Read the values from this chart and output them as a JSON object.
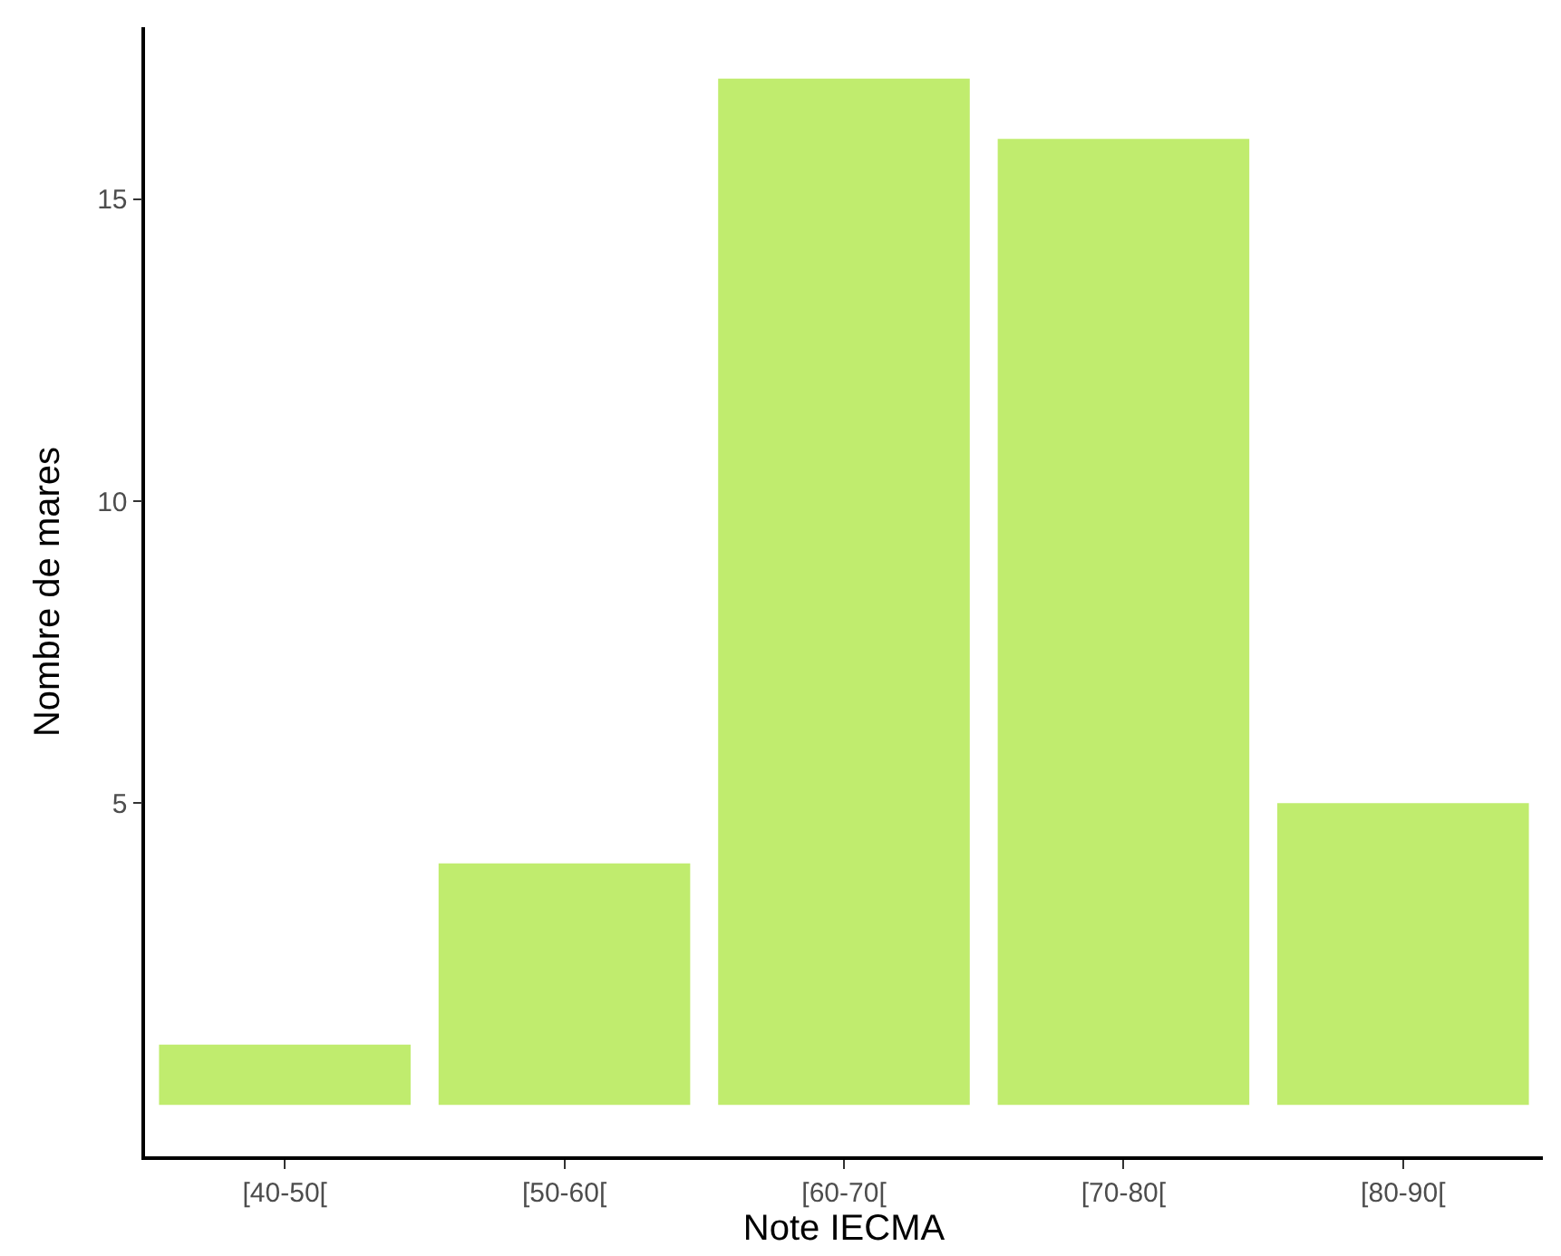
{
  "chart_data": {
    "type": "bar",
    "xlabel": "Note IECMA",
    "ylabel": "Nombre de mares",
    "categories": [
      "[40-50[",
      "[50-60[",
      "[60-70[",
      "[70-80[",
      "[80-90["
    ],
    "values": [
      1,
      4,
      17,
      16,
      5
    ],
    "color": "#c0ec6e",
    "ylim": [
      -0.85,
      17.85
    ],
    "yticks": [
      5,
      10,
      15
    ]
  }
}
